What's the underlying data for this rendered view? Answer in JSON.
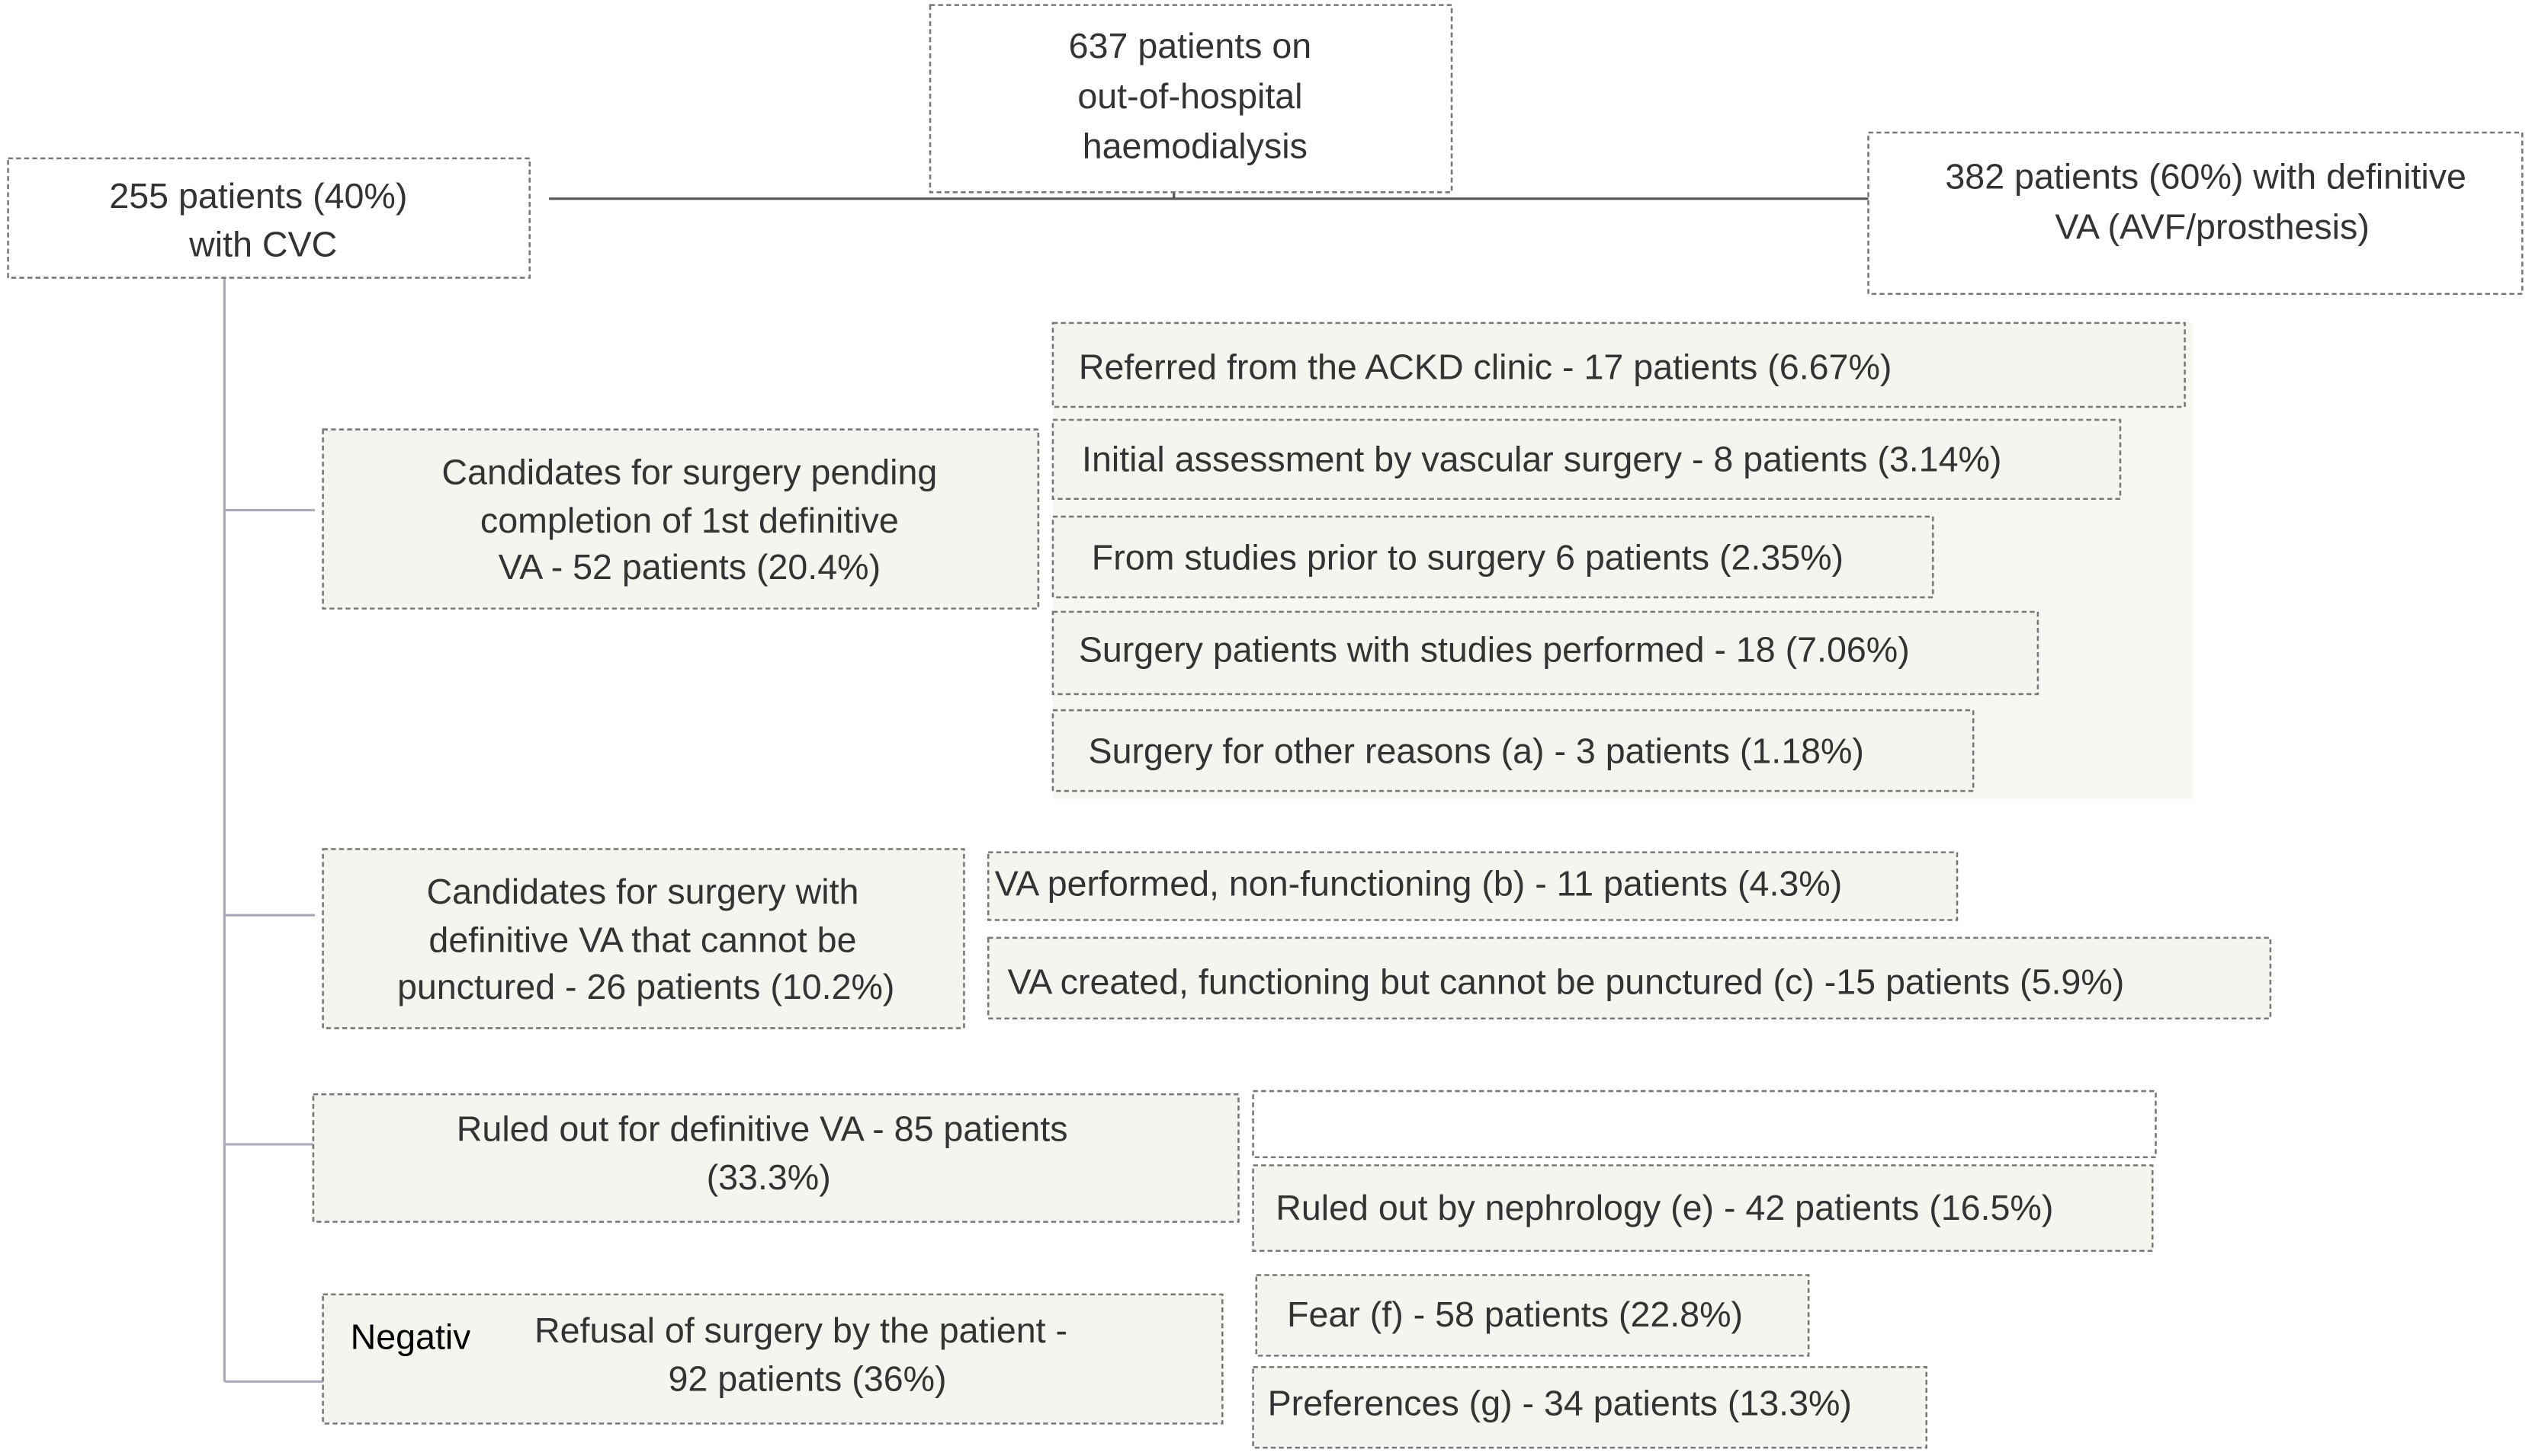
{
  "root": {
    "lines": [
      "637 patients on",
      "out-of-hospital",
      "haemodialysis"
    ]
  },
  "left": {
    "lines": [
      "255 patients (40%)",
      "with CVC"
    ]
  },
  "right": {
    "lines": [
      "382 patients (60%) with definitive",
      "VA (AVF/prosthesis)"
    ]
  },
  "groups": [
    {
      "lines": [
        "Candidates for surgery pending",
        "completion of 1st definitive",
        "VA - 52 patients (20.4%)"
      ],
      "items": [
        "Referred from the ACKD clinic - 17 patients (6.67%)",
        "Initial assessment by vascular surgery - 8 patients (3.14%)",
        "From studies prior to surgery 6 patients (2.35%)",
        "Surgery patients with studies performed - 18 (7.06%)",
        "Surgery for other reasons (a) - 3 patients (1.18%)"
      ]
    },
    {
      "lines": [
        "Candidates for surgery with",
        "definitive VA that cannot be",
        "punctured - 26 patients (10.2%)"
      ],
      "items": [
        "VA performed, non-functioning (b) - 11 patients (4.3%)",
        "VA created, functioning but cannot be punctured (c) -15 patients (5.9%)"
      ]
    },
    {
      "lines": [
        "Ruled out for definitive VA - 85 patients",
        "(33.3%)"
      ],
      "items": [
        "Ruled out by nephrology (e) - 42 patients (16.5%)"
      ]
    },
    {
      "lines": [
        "Refusal of surgery by the patient -",
        "92 patients (36%)"
      ],
      "items": [
        "Fear (f) - 58 patients (22.8%)",
        "Preferences (g) - 34 patients (13.3%)"
      ]
    }
  ],
  "fragment": "Negativ"
}
